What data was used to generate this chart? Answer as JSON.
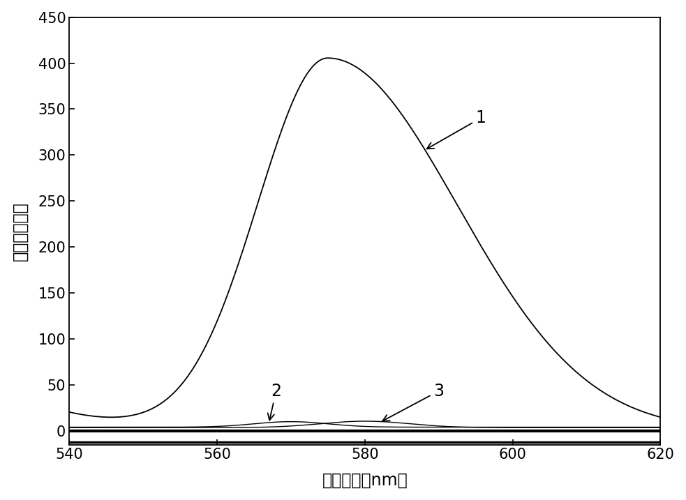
{
  "xlabel": "波　长　（nm）",
  "ylabel": "相对荧光强度",
  "xlim": [
    540,
    620
  ],
  "ylim": [
    -15,
    450
  ],
  "xticks": [
    540,
    560,
    580,
    600,
    620
  ],
  "yticks": [
    0,
    50,
    100,
    150,
    200,
    250,
    300,
    350,
    400,
    450
  ],
  "line_color": "#000000",
  "background_color": "#ffffff",
  "figsize": [
    9.83,
    7.17
  ],
  "dpi": 100
}
